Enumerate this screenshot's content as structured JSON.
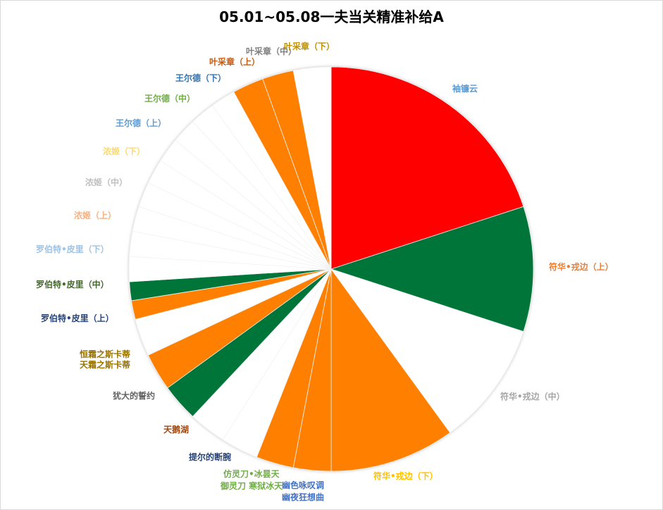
{
  "chart_data": {
    "type": "pie",
    "title": "05.01~05.08一夫当关精准补给A",
    "start_angle_deg": 0,
    "direction": "clockwise",
    "slices": [
      {
        "label": "袖镰云",
        "value": 20.0,
        "color": "#FF0000",
        "label_color": "#5B9BD5"
      },
      {
        "label": "符华•戎边（上）",
        "value": 10.0,
        "color": "#00753A",
        "label_color": "#ED7D31"
      },
      {
        "label": "符华•戎边（中）",
        "value": 10.0,
        "color": "#FFFFFF",
        "label_color": "#A5A5A5"
      },
      {
        "label": "符华•戎边（下）",
        "value": 10.0,
        "color": "#FF8000",
        "label_color": "#FFC000"
      },
      {
        "label": "幽色咏叹调",
        "value": 3.0,
        "color": "#FF8000",
        "label_color": "#4472C4"
      },
      {
        "label": "幽夜狂想曲",
        "value": 3.0,
        "color": "#FF8000",
        "label_color": "#4472C4"
      },
      {
        "label": "御灵刀 寒狱冰天",
        "value": 3.0,
        "color": "#FFFFFF",
        "label_color": "#70AD47"
      },
      {
        "label": "仿灵刀•冰昙天",
        "value": 3.0,
        "color": "#FFFFFF",
        "label_color": "#70AD47"
      },
      {
        "label": "提尔的断腕",
        "value": 3.0,
        "color": "#00753A",
        "label_color": "#264478"
      },
      {
        "label": "天鹅湖",
        "value": 3.0,
        "color": "#FF8000",
        "label_color": "#9E480E"
      },
      {
        "label": "犹大的誓约",
        "value": 3.0,
        "color": "#FFFFFF",
        "label_color": "#636363"
      },
      {
        "label": "天霜之斯卡蒂",
        "value": 1.5,
        "color": "#FF8000",
        "label_color": "#997300"
      },
      {
        "label": "恒霜之斯卡蒂",
        "value": 1.5,
        "color": "#00753A",
        "label_color": "#997300"
      },
      {
        "label": "罗伯特•皮里（上）",
        "value": 2.0,
        "color": "#FFFFFF",
        "label_color": "#264478"
      },
      {
        "label": "罗伯特•皮里（中）",
        "value": 2.0,
        "color": "#FFFFFF",
        "label_color": "#43682B"
      },
      {
        "label": "罗伯特•皮里（下）",
        "value": 2.0,
        "color": "#FFFFFF",
        "label_color": "#9DC3E6"
      },
      {
        "label": "浓姬（上）",
        "value": 2.0,
        "color": "#FFFFFF",
        "label_color": "#F4B183"
      },
      {
        "label": "浓姬（中）",
        "value": 2.0,
        "color": "#FFFFFF",
        "label_color": "#BFBFBF"
      },
      {
        "label": "浓姬（下）",
        "value": 2.0,
        "color": "#FFFFFF",
        "label_color": "#FFD966"
      },
      {
        "label": "王尔德（上）",
        "value": 2.0,
        "color": "#FFFFFF",
        "label_color": "#5B9BD5"
      },
      {
        "label": "王尔德（中）",
        "value": 2.0,
        "color": "#FFFFFF",
        "label_color": "#70AD47"
      },
      {
        "label": "王尔德（下）",
        "value": 2.0,
        "color": "#FFFFFF",
        "label_color": "#2E75B6"
      },
      {
        "label": "叶采章（上）",
        "value": 2.5,
        "color": "#FF8000",
        "label_color": "#C55A11"
      },
      {
        "label": "叶采章（中）",
        "value": 2.5,
        "color": "#FF8000",
        "label_color": "#7F7F7F"
      },
      {
        "label": "叶采章（下）",
        "value": 3.0,
        "color": "#FFFFFF",
        "label_color": "#BF9000"
      }
    ]
  }
}
